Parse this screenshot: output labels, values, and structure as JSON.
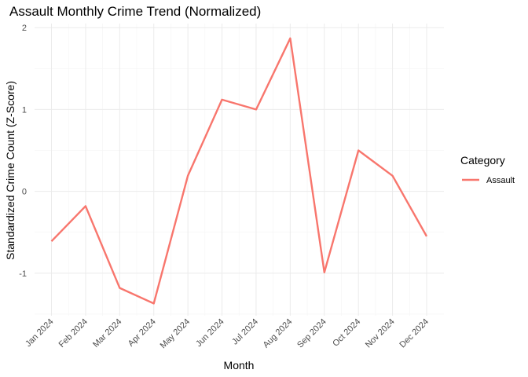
{
  "chart_data": {
    "type": "line",
    "title": "Assault Monthly Crime Trend (Normalized)",
    "xlabel": "Month",
    "ylabel": "Standardized Crime Count (Z-Score)",
    "categories": [
      "Jan 2024",
      "Feb 2024",
      "Mar 2024",
      "Apr 2024",
      "May 2024",
      "Jun 2024",
      "Jul 2024",
      "Aug 2024",
      "Sep 2024",
      "Oct 2024",
      "Nov 2024",
      "Dec 2024"
    ],
    "series": [
      {
        "name": "Assault",
        "values": [
          -0.61,
          -0.18,
          -1.18,
          -1.37,
          0.19,
          1.12,
          1.0,
          1.87,
          -0.99,
          0.5,
          0.19,
          -0.55
        ],
        "color": "#f8766d"
      }
    ],
    "yticks": [
      -1,
      0,
      1,
      2
    ],
    "ylim": [
      -1.52,
      2.05
    ],
    "grid": true,
    "legend": {
      "title": "Category",
      "placement": "right",
      "entries": [
        "Assault"
      ]
    }
  }
}
